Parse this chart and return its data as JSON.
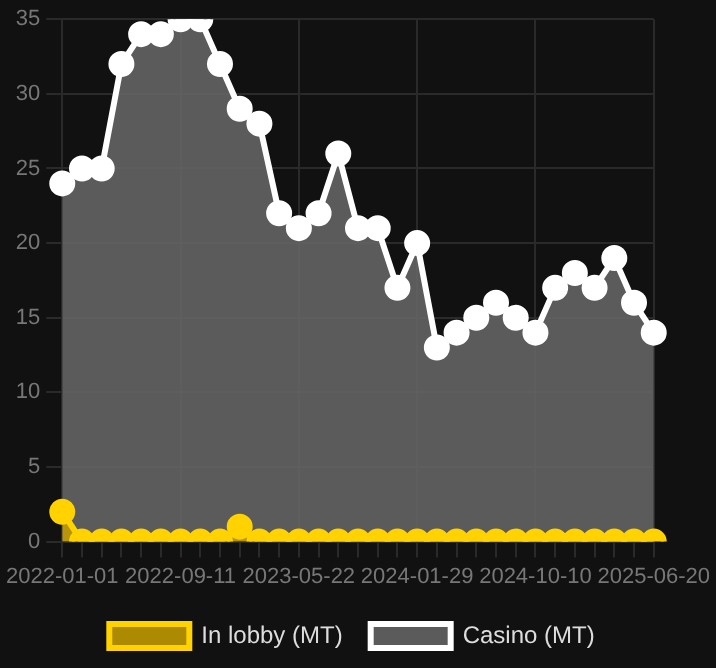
{
  "chart_data": {
    "type": "area",
    "categories": [
      "2022-01-01",
      null,
      null,
      null,
      null,
      null,
      "2022-09-11",
      null,
      null,
      null,
      null,
      null,
      "2023-05-22",
      null,
      null,
      null,
      null,
      null,
      "2024-01-29",
      null,
      null,
      null,
      null,
      null,
      "2024-10-10",
      null,
      null,
      null,
      null,
      null,
      "2025-06-20"
    ],
    "series": [
      {
        "name": "In lobby (MT)",
        "color": "#ffd200",
        "values": [
          2,
          0,
          0,
          0,
          0,
          0,
          0,
          0,
          0,
          1,
          0,
          0,
          0,
          0,
          0,
          0,
          0,
          0,
          0,
          0,
          0,
          0,
          0,
          0,
          0,
          0,
          0,
          0,
          0,
          0,
          0
        ]
      },
      {
        "name": "Casino (MT)",
        "color": "#ffffff",
        "values": [
          24,
          25,
          25,
          32,
          34,
          34,
          35,
          35,
          32,
          29,
          28,
          22,
          21,
          22,
          26,
          21,
          21,
          17,
          20,
          13,
          14,
          15,
          16,
          15,
          14,
          17,
          18,
          17,
          19,
          16,
          14
        ]
      }
    ],
    "ylim": [
      0,
      35
    ],
    "yticks": [
      0,
      5,
      10,
      15,
      20,
      25,
      30,
      35
    ],
    "grid": true,
    "legend": "bottom",
    "marker": "circle"
  }
}
